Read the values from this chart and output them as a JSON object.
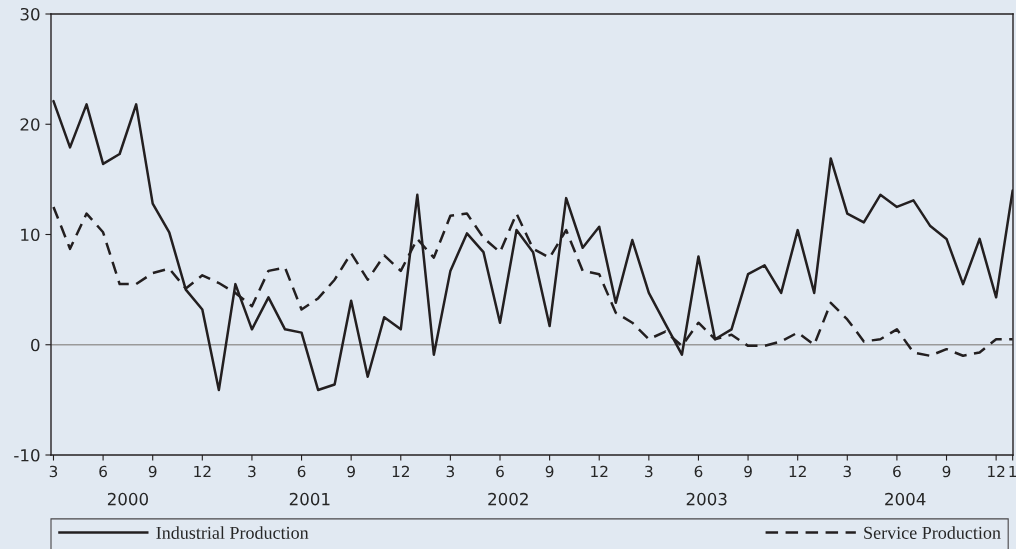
{
  "chart_data": {
    "type": "line",
    "categories": [
      "3",
      null,
      null,
      "6",
      null,
      null,
      "9",
      null,
      null,
      "12",
      null,
      null,
      "3",
      null,
      null,
      "6",
      null,
      null,
      "9",
      null,
      null,
      "12",
      null,
      null,
      "3",
      null,
      null,
      "6",
      null,
      null,
      "9",
      null,
      null,
      "12",
      null,
      null,
      "3",
      null,
      null,
      "6",
      null,
      null,
      "9",
      null,
      null,
      "12",
      null,
      null,
      "3",
      null,
      null,
      "6",
      null,
      null,
      "9",
      null,
      null,
      "12",
      "1"
    ],
    "series": [
      {
        "name": "Industrial Production",
        "color": "#231f20",
        "line_style": "solid",
        "values": [
          22.1,
          17.9,
          21.8,
          16.4,
          17.3,
          21.8,
          12.8,
          10.2,
          5.0,
          3.2,
          -4.1,
          5.5,
          1.4,
          4.3,
          1.4,
          1.1,
          -4.1,
          -3.6,
          4.0,
          -2.9,
          2.5,
          1.4,
          13.6,
          -0.9,
          6.7,
          10.1,
          8.4,
          2.0,
          10.4,
          8.4,
          1.7,
          13.3,
          8.8,
          10.7,
          3.8,
          9.5,
          4.7,
          1.9,
          -0.9,
          8.0,
          0.5,
          1.4,
          6.4,
          7.2,
          4.7,
          10.4,
          4.7,
          16.9,
          11.9,
          11.1,
          13.6,
          12.5,
          13.1,
          10.8,
          9.6,
          5.5,
          9.6,
          4.3,
          14.0
        ]
      },
      {
        "name": "Service Production",
        "color": "#231f20",
        "line_style": "dashed",
        "values": [
          12.5,
          8.7,
          11.9,
          10.2,
          5.5,
          5.5,
          6.5,
          6.9,
          5.1,
          6.3,
          5.6,
          4.7,
          3.5,
          6.7,
          7.0,
          3.2,
          4.2,
          5.9,
          8.3,
          5.9,
          8.1,
          6.7,
          9.6,
          7.9,
          11.7,
          11.9,
          9.7,
          8.4,
          11.9,
          8.7,
          7.9,
          10.4,
          6.7,
          6.4,
          2.9,
          2.0,
          0.5,
          1.2,
          -0.1,
          2.0,
          0.5,
          0.9,
          -0.1,
          -0.1,
          0.3,
          1.1,
          0.0,
          3.8,
          2.3,
          0.3,
          0.5,
          1.4,
          -0.7,
          -1.0,
          -0.4,
          -1.0,
          -0.7,
          0.5,
          0.5
        ]
      }
    ],
    "ylim": [
      -10,
      30
    ],
    "yticks": [
      -10,
      0,
      10,
      20,
      30
    ],
    "ref_lines": [
      {
        "axis": "y",
        "value": 0,
        "color": "#9a9a9a"
      }
    ],
    "annotations": [
      "2000",
      "2001",
      "2002",
      "2003",
      "2004"
    ],
    "grid": false,
    "legend": "bottom",
    "marker": "none"
  }
}
